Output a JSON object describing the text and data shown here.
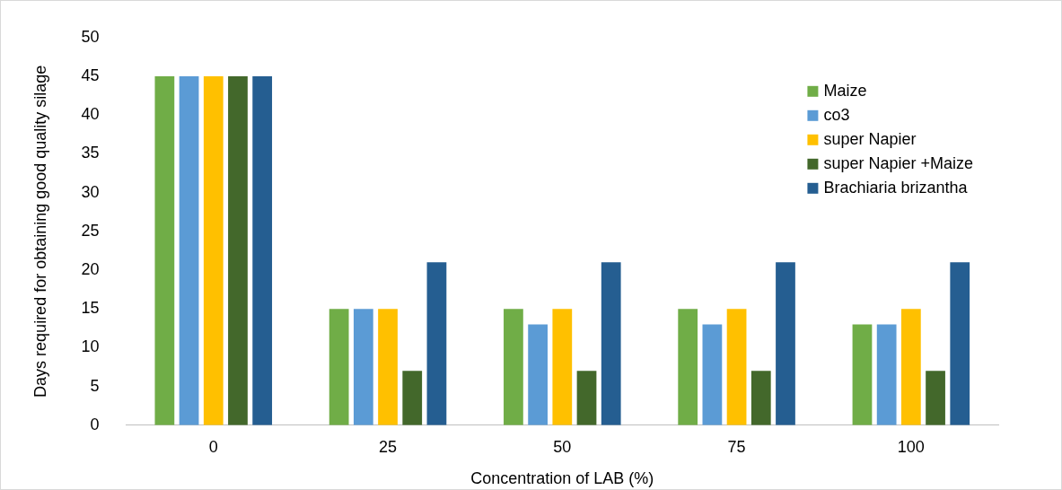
{
  "chart_data": {
    "type": "bar",
    "xlabel": "Concentration of LAB (%)",
    "ylabel": "Days required for obtaining good quality silage",
    "categories": [
      "0",
      "25",
      "50",
      "75",
      "100"
    ],
    "series": [
      {
        "name": "Maize",
        "color": "#70ad47",
        "values": [
          45,
          15,
          15,
          15,
          13
        ]
      },
      {
        "name": "co3",
        "color": "#5b9bd5",
        "values": [
          45,
          15,
          13,
          13,
          13
        ]
      },
      {
        "name": "super Napier",
        "color": "#ffc000",
        "values": [
          45,
          15,
          15,
          15,
          15
        ]
      },
      {
        "name": "super Napier +Maize",
        "color": "#43682b",
        "values": [
          45,
          7,
          7,
          7,
          7
        ]
      },
      {
        "name": "Brachiaria brizantha",
        "color": "#255e91",
        "values": [
          45,
          21,
          21,
          21,
          21
        ]
      }
    ],
    "ylim": [
      0,
      50
    ],
    "yticks": [
      0,
      5,
      10,
      15,
      20,
      25,
      30,
      35,
      40,
      45,
      50
    ],
    "grid": false,
    "legend": "top right"
  }
}
